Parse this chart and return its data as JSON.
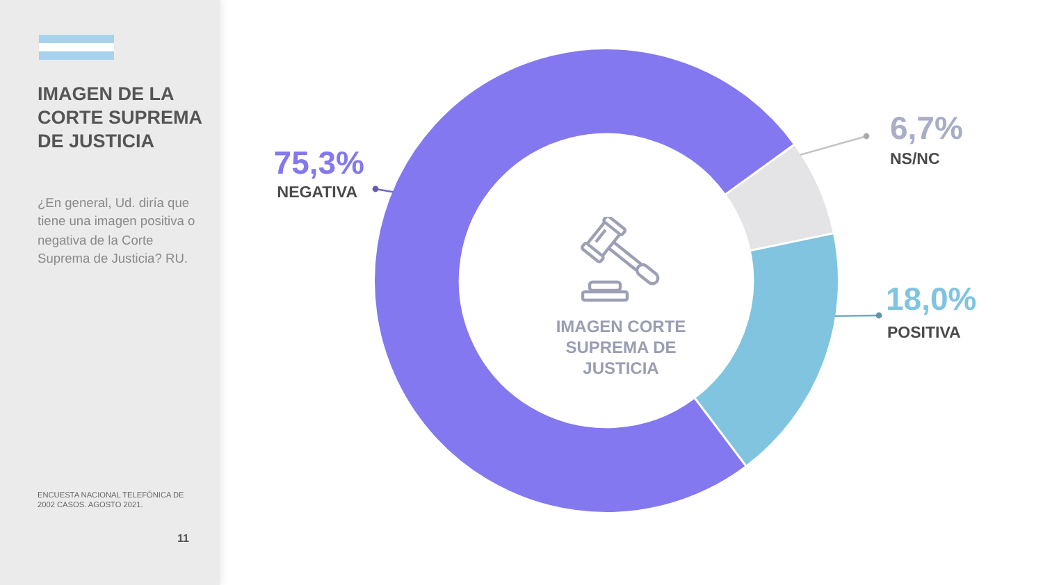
{
  "chart_data": {
    "type": "donut",
    "title": "IMAGEN DE LA CORTE SUPREMA DE JUSTICIA",
    "subtitle": "¿En general, Ud. diría que tiene una imagen positiva o negativa de la Corte Suprema de Justicia? RU.",
    "categories": [
      "NEGATIVA",
      "NS/NC",
      "POSITIVA"
    ],
    "values": [
      75.3,
      6.7,
      18.0
    ],
    "colors": [
      "#8378ef",
      "#e4e4e6",
      "#80c4e0"
    ],
    "value_labels": [
      "75,3%",
      "6,7%",
      "18,0%"
    ],
    "annotations": [
      "IMAGEN CORTE SUPREMA DE JUSTICIA",
      "ENCUESTA NACIONAL TELEFÓNICA DE 2002 CASOS. AGOSTO 2021.",
      "11"
    ]
  }
}
